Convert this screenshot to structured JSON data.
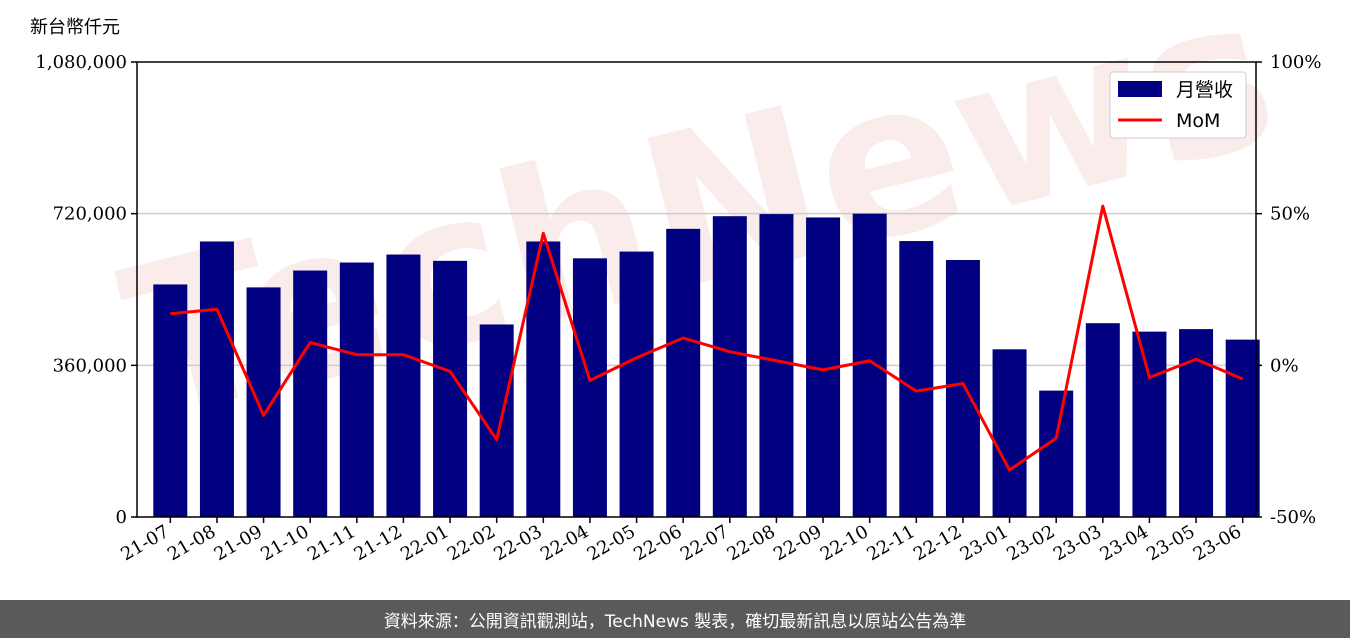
{
  "chart_data": {
    "type": "bar",
    "unit_label": "新台幣仟元",
    "categories": [
      "21-07",
      "21-08",
      "21-09",
      "21-10",
      "21-11",
      "21-12",
      "22-01",
      "22-02",
      "22-03",
      "22-04",
      "22-05",
      "22-06",
      "22-07",
      "22-08",
      "22-09",
      "22-10",
      "22-11",
      "22-12",
      "23-01",
      "23-02",
      "23-03",
      "23-04",
      "23-05",
      "23-06"
    ],
    "series": [
      {
        "name": "月營收",
        "type": "bar",
        "axis": "left",
        "color": "#000080",
        "values": [
          552000,
          654000,
          545000,
          585000,
          604000,
          623000,
          608000,
          457000,
          654000,
          614000,
          630000,
          684000,
          714000,
          719000,
          711000,
          720000,
          655000,
          610000,
          398000,
          300000,
          460000,
          440000,
          446000,
          421000
        ]
      },
      {
        "name": "MoM",
        "type": "line",
        "axis": "right",
        "color": "#ff0000",
        "values": [
          17,
          18.5,
          -16.5,
          7.5,
          3.5,
          3.5,
          -2,
          -24.5,
          43.5,
          -5,
          2.5,
          9,
          4.5,
          1.5,
          -1.5,
          1.5,
          -8.5,
          -6,
          -34.5,
          -24,
          52.5,
          -4,
          2,
          -4.5
        ]
      }
    ],
    "y_left": {
      "ylim": [
        0,
        1080000
      ],
      "ticks": [
        "0",
        "360,000",
        "720,000",
        "1,080,000"
      ]
    },
    "y_right": {
      "ylim": [
        -50,
        100
      ],
      "ticks": [
        "-50%",
        "0%",
        "50%",
        "100%"
      ]
    },
    "grid": "horizontal",
    "legend": "top-right",
    "watermark": "TechNews"
  },
  "footer": {
    "text": "資料來源：公開資訊觀測站，TechNews 製表，確切最新訊息以原站公告為準"
  }
}
